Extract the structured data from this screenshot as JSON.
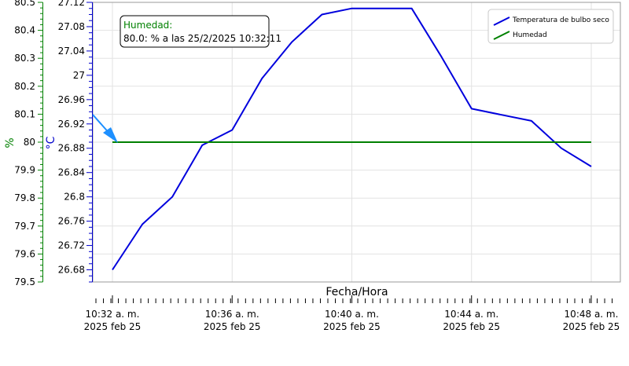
{
  "chart_data": {
    "type": "line",
    "xlabel": "Fecha/Hora",
    "x_ticks": [
      {
        "time": "10:32 a. m.",
        "date": "2025 feb 25",
        "minutes": 0
      },
      {
        "time": "10:36 a. m.",
        "date": "2025 feb 25",
        "minutes": 4
      },
      {
        "time": "10:40 a. m.",
        "date": "2025 feb 25",
        "minutes": 8
      },
      {
        "time": "10:44 a. m.",
        "date": "2025 feb 25",
        "minutes": 12
      },
      {
        "time": "10:48 a. m.",
        "date": "2025 feb 25",
        "minutes": 16
      }
    ],
    "y_axes": [
      {
        "id": "hum",
        "label": "%",
        "color": "#008000",
        "range": [
          79.5,
          80.5
        ],
        "ticks": [
          "79.5",
          "79.6",
          "79.7",
          "79.8",
          "79.9",
          "80",
          "80.1",
          "80.2",
          "80.3",
          "80.4",
          "80.5"
        ]
      },
      {
        "id": "temp",
        "label": "°C",
        "color": "#0000cc",
        "range": [
          26.66,
          27.12
        ],
        "ticks": [
          "26.68",
          "26.72",
          "26.76",
          "26.8",
          "26.84",
          "26.88",
          "26.92",
          "26.96",
          "27",
          "27.04",
          "27.08",
          "27.12"
        ]
      }
    ],
    "series": [
      {
        "name": "Temperatura de bulbo seco",
        "axis": "temp",
        "color": "#0000dd",
        "points": [
          [
            0,
            26.68
          ],
          [
            1,
            26.755
          ],
          [
            2,
            26.8
          ],
          [
            3,
            26.885
          ],
          [
            4,
            26.91
          ],
          [
            5,
            26.995
          ],
          [
            6,
            27.055
          ],
          [
            7,
            27.1
          ],
          [
            8,
            27.11
          ],
          [
            9,
            27.11
          ],
          [
            10,
            27.11
          ],
          [
            11,
            27.03
          ],
          [
            12,
            26.945
          ],
          [
            13,
            26.935
          ],
          [
            14,
            26.925
          ],
          [
            15,
            26.88
          ],
          [
            16,
            26.85
          ]
        ]
      },
      {
        "name": "Humedad",
        "axis": "hum",
        "color": "#008000",
        "points": [
          [
            0,
            80
          ],
          [
            16,
            80
          ]
        ]
      }
    ],
    "legend_position": "top-right",
    "grid": true,
    "tooltip": {
      "title": "Humedad:",
      "text": "80.0: % a las 25/2/2025 10:32:11"
    }
  }
}
